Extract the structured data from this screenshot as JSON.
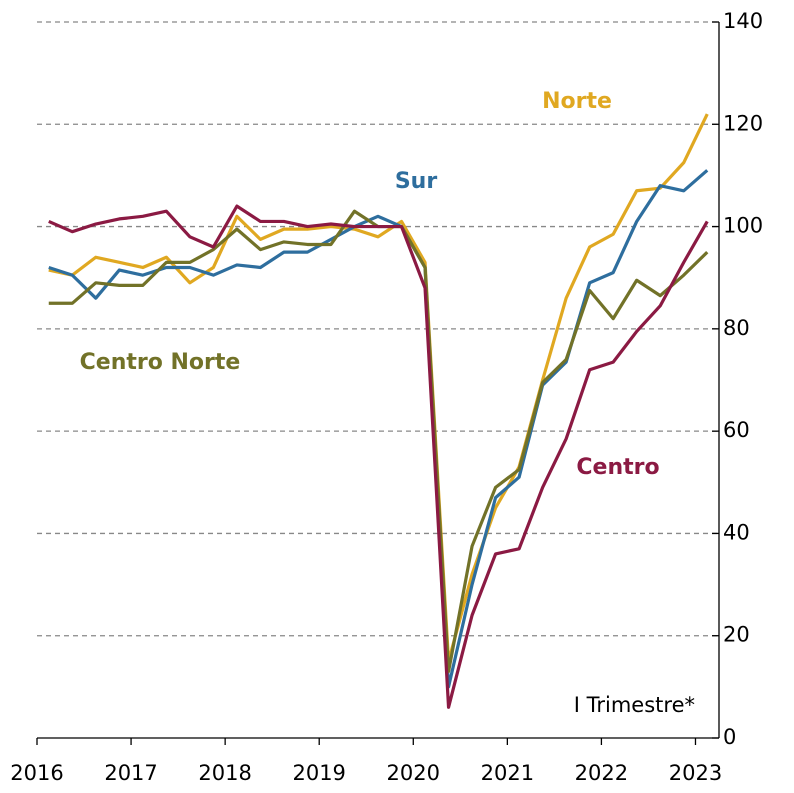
{
  "chart_data": {
    "type": "line",
    "annotation": "I Trimestre*",
    "x": [
      2016.125,
      2016.375,
      2016.625,
      2016.875,
      2017.125,
      2017.375,
      2017.625,
      2017.875,
      2018.125,
      2018.375,
      2018.625,
      2018.875,
      2019.125,
      2019.375,
      2019.625,
      2019.875,
      2020.125,
      2020.375,
      2020.625,
      2020.875,
      2021.125,
      2021.375,
      2021.625,
      2021.875,
      2022.125,
      2022.375,
      2022.625,
      2022.875,
      2023.125
    ],
    "xlim": [
      2016,
      2023.25
    ],
    "xticks": [
      2016,
      2017,
      2018,
      2019,
      2020,
      2021,
      2022,
      2023
    ],
    "ylim": [
      0,
      140
    ],
    "yticks": [
      0,
      20,
      40,
      60,
      80,
      100,
      120,
      140
    ],
    "grid": true,
    "series": [
      {
        "name": "Norte",
        "color": "#e0a821",
        "values": [
          91.5,
          90.5,
          94,
          93,
          92,
          94,
          89,
          92,
          102,
          97.5,
          99.5,
          99.5,
          100,
          99.5,
          98,
          101,
          93,
          15,
          32,
          45,
          53,
          70,
          86,
          96,
          98.5,
          107,
          107.5,
          112.5,
          122
        ]
      },
      {
        "name": "Sur",
        "color": "#2e6e9e",
        "values": [
          92,
          90.5,
          86,
          91.5,
          90.5,
          92,
          92,
          90.5,
          92.5,
          92,
          95,
          95,
          97.5,
          100,
          102,
          100,
          92,
          10,
          30,
          47,
          51,
          69,
          73.5,
          89,
          91,
          101,
          108,
          107,
          111
        ]
      },
      {
        "name": "Centro Norte",
        "color": "#727228",
        "values": [
          85,
          85,
          89,
          88.5,
          88.5,
          93,
          93,
          95.5,
          99.5,
          95.5,
          97,
          96.5,
          96.5,
          103,
          100,
          100,
          92,
          13,
          37.5,
          49,
          52.5,
          69.5,
          74,
          87.5,
          82,
          89.5,
          86.5,
          90.5,
          95
        ]
      },
      {
        "name": "Centro",
        "color": "#8b1a43",
        "values": [
          101,
          99,
          100.5,
          101.5,
          102,
          103,
          98,
          96,
          104,
          101,
          101,
          100,
          100.5,
          100,
          100,
          100,
          88,
          6,
          24,
          36,
          37,
          49,
          58.5,
          72,
          73.5,
          79.5,
          84.5,
          93,
          101
        ]
      }
    ]
  }
}
